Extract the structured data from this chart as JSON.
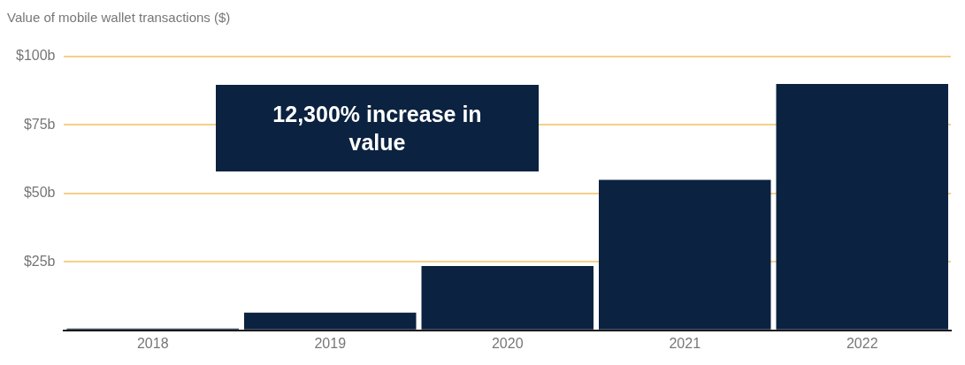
{
  "chart_data": {
    "type": "bar",
    "title": "Value of mobile wallet transactions ($)",
    "categories": [
      "2018",
      "2019",
      "2020",
      "2021",
      "2022"
    ],
    "values": [
      0.7,
      6.5,
      23.5,
      55,
      90
    ],
    "color": "#0b2240",
    "ylim": [
      0,
      100
    ],
    "yticks": [
      {
        "value": 0,
        "label": null
      },
      {
        "value": 25,
        "label": "$25b"
      },
      {
        "value": 50,
        "label": "$50b"
      },
      {
        "value": 75,
        "label": "$75b"
      },
      {
        "value": 100,
        "label": "$100b"
      }
    ],
    "grid": "y",
    "legend": false,
    "annotations": [
      "12,300% increase in value"
    ]
  }
}
